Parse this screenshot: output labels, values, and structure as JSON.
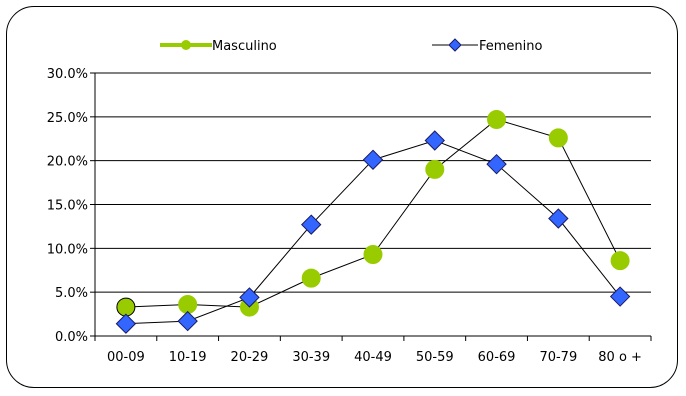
{
  "chart_data": {
    "type": "line",
    "categories": [
      "00-09",
      "10-19",
      "20-29",
      "30-39",
      "40-49",
      "50-59",
      "60-69",
      "70-79",
      "80 o +"
    ],
    "series": [
      {
        "name": "Masculino",
        "values": [
          3.3,
          3.6,
          3.3,
          6.6,
          9.3,
          19.0,
          24.7,
          22.6,
          8.6
        ],
        "color": "#99cc00",
        "marker": "circle"
      },
      {
        "name": "Femenino",
        "values": [
          1.4,
          1.7,
          4.4,
          12.7,
          20.1,
          22.3,
          19.6,
          13.4,
          4.5
        ],
        "color": "#3366ff",
        "marker": "diamond"
      }
    ],
    "yticks": [
      "0.0%",
      "5.0%",
      "10.0%",
      "15.0%",
      "20.0%",
      "25.0%",
      "30.0%"
    ],
    "ylim": [
      0,
      30
    ],
    "grid": "horizontal",
    "legend": "top"
  }
}
